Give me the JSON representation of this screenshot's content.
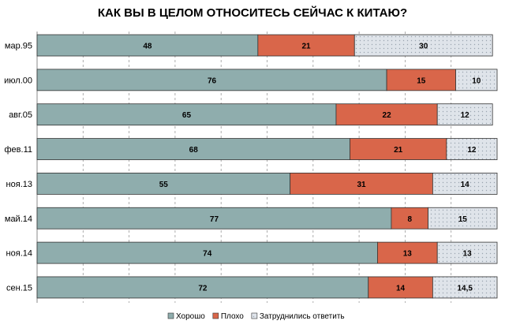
{
  "chart_data": {
    "type": "bar",
    "orientation": "horizontal",
    "stacked": true,
    "title": "КАК ВЫ В ЦЕЛОМ ОТНОСИТЕСЬ СЕЙЧАС К КИТАЮ?",
    "categories": [
      "мар.95",
      "июл.00",
      "авг.05",
      "фев.11",
      "ноя.13",
      "май.14",
      "ноя.14",
      "сен.15"
    ],
    "series": [
      {
        "name": "Хорошо",
        "values": [
          48,
          76,
          65,
          68,
          55,
          77,
          74,
          72
        ],
        "labels": [
          "48",
          "76",
          "65",
          "68",
          "55",
          "77",
          "74",
          "72"
        ],
        "color": "#8fadad"
      },
      {
        "name": "Плохо",
        "values": [
          21,
          15,
          22,
          21,
          31,
          8,
          13,
          14
        ],
        "labels": [
          "21",
          "15",
          "22",
          "21",
          "31",
          "8",
          "13",
          "14"
        ],
        "color": "#d9664a"
      },
      {
        "name": "Затруднились ответить",
        "values": [
          30,
          10,
          12,
          12,
          14,
          15,
          13,
          14.5
        ],
        "labels": [
          "30",
          "10",
          "12",
          "12",
          "14",
          "15",
          "13",
          "14,5"
        ],
        "color": "#dfe4ea"
      }
    ],
    "xlim": [
      0,
      100
    ],
    "grid": true,
    "legend_position": "bottom"
  }
}
